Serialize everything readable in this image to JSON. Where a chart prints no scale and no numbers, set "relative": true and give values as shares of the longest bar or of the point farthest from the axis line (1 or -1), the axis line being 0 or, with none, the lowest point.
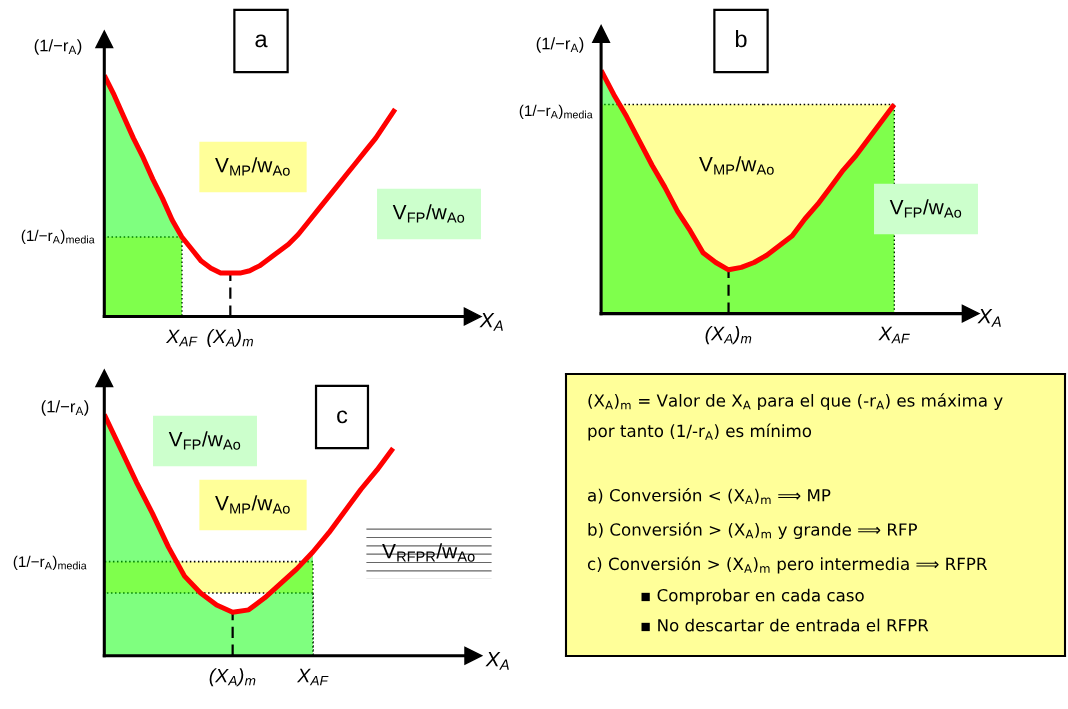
{
  "chart_data": [
    {
      "type": "line",
      "title": "a",
      "xlabel": "X$_{A}$",
      "ylabel": "(1/−r$_{A}$)",
      "relative": true,
      "categories": [
        null,
        null,
        null,
        null,
        null,
        null,
        null,
        null,
        "X$_{AF}$",
        null,
        null,
        null,
        null,
        "(X$_{A}$)$_{m}$",
        null,
        null,
        null,
        null,
        null,
        null,
        null,
        null,
        null,
        null,
        null,
        null,
        null,
        null,
        null,
        null,
        null,
        null,
        null,
        null,
        null,
        null,
        null,
        null,
        null
      ],
      "series": [
        {
          "type": "area",
          "color": "#ffff99",
          "line_style": "dotted",
          "values": [
            0.33,
            0.33,
            0.33,
            0.33,
            0.33,
            0.33,
            0.33,
            0.33,
            0.33,
            null,
            null,
            null,
            null,
            null,
            null,
            null,
            null,
            null,
            null,
            null,
            null,
            null,
            null,
            null,
            null,
            null,
            null,
            null,
            null,
            null,
            null,
            null,
            null,
            null,
            null,
            null,
            null,
            null,
            null
          ]
        },
        {
          "type": "area",
          "color": "#00ff00",
          "values": [
            1.0,
            0.92,
            0.83,
            0.74,
            0.66,
            0.57,
            0.49,
            0.4,
            0.33,
            null,
            null,
            null,
            null,
            null,
            null,
            null,
            null,
            null,
            null,
            null,
            null,
            null,
            null,
            null,
            null,
            null,
            null,
            null,
            null,
            null,
            null,
            null,
            null,
            null,
            null,
            null,
            null,
            null,
            null
          ]
        },
        {
          "type": "line",
          "color": "#ff0000",
          "values": [
            1.0,
            0.92,
            0.83,
            0.74,
            0.66,
            0.57,
            0.49,
            0.4,
            0.33,
            0.28,
            0.23,
            0.2,
            0.18,
            0.18,
            0.18,
            0.19,
            0.21,
            0.24,
            0.27,
            0.3,
            0.34,
            0.39,
            0.44,
            0.49,
            0.54,
            0.59,
            0.64,
            0.69,
            0.74,
            0.8,
            0.86,
            null,
            null,
            null,
            null,
            null,
            null,
            null,
            null
          ]
        }
      ],
      "ref_lines": [
        {
          "axis": "x",
          "value": "(X$_{A}$)$_{m}$",
          "line_style": "dashed",
          "color": "#000000"
        }
      ],
      "annotations": [
        "(1/−r$_{A}$)$_{media}$",
        "V$_{MP}$/w$_{Ao}$",
        "V$_{FP}$/w$_{Ao}$"
      ]
    },
    {
      "type": "line",
      "title": "b",
      "xlabel": "X$_{A}$",
      "ylabel": "(1/−r$_{A}$)",
      "relative": true,
      "categories": [
        null,
        null,
        null,
        null,
        null,
        null,
        null,
        null,
        null,
        null,
        "(X$_{A}$)$_{m}$",
        null,
        null,
        null,
        null,
        null,
        null,
        null,
        null,
        null,
        null,
        null,
        null,
        "X$_{AF}$",
        null,
        null,
        null,
        null,
        null,
        null
      ],
      "series": [
        {
          "type": "area",
          "color": "#ffff99",
          "line_style": "dotted",
          "values": [
            0.86,
            0.86,
            0.86,
            0.86,
            0.86,
            0.86,
            0.86,
            0.86,
            0.86,
            0.86,
            0.86,
            0.86,
            0.86,
            0.86,
            0.86,
            0.86,
            0.86,
            0.86,
            0.86,
            0.86,
            0.86,
            0.86,
            0.86,
            0.86,
            null,
            null,
            null,
            null,
            null,
            null
          ]
        },
        {
          "type": "area",
          "color": "#00ff00",
          "values": [
            1.0,
            0.9,
            0.81,
            0.71,
            0.61,
            0.52,
            0.42,
            0.34,
            0.25,
            0.21,
            0.18,
            0.19,
            0.21,
            0.24,
            0.28,
            0.32,
            0.39,
            0.45,
            0.52,
            0.59,
            0.65,
            0.72,
            0.79,
            0.86,
            null,
            null,
            null,
            null,
            null,
            null
          ]
        },
        {
          "type": "line",
          "color": "#ff0000",
          "values": [
            1.0,
            0.9,
            0.81,
            0.71,
            0.61,
            0.52,
            0.42,
            0.34,
            0.25,
            0.21,
            0.18,
            0.19,
            0.21,
            0.24,
            0.28,
            0.32,
            0.39,
            0.45,
            0.52,
            0.59,
            0.65,
            0.72,
            0.79,
            0.86,
            null,
            null,
            null,
            null,
            null,
            null
          ]
        }
      ],
      "ref_lines": [
        {
          "axis": "x",
          "value": "(X$_{A}$)$_{m}$",
          "line_style": "dashed",
          "color": "#000000"
        }
      ],
      "annotations": [
        "(1/−r$_{A}$)$_{media}$",
        "V$_{MP}$/w$_{Ao}$",
        "V$_{FP}$/w$_{Ao}$"
      ]
    },
    {
      "type": "line",
      "title": "c",
      "xlabel": "X$_{A}$",
      "ylabel": "(1/−r$_{A}$)",
      "relative": true,
      "categories": [
        null,
        null,
        null,
        null,
        null,
        null,
        null,
        null,
        "(X$_{A}$)$_{m}$",
        null,
        null,
        null,
        null,
        "X$_{AF}$",
        null,
        null,
        null,
        null,
        null,
        null,
        null,
        null,
        null,
        null
      ],
      "series": [
        {
          "type": "area",
          "color": "#ffff99",
          "line_style": "dotted",
          "values": [
            0.39,
            0.39,
            0.39,
            0.39,
            0.39,
            0.39,
            0.39,
            0.39,
            0.39,
            0.39,
            0.39,
            0.39,
            0.39,
            0.39,
            null,
            null,
            null,
            null,
            null,
            null,
            null,
            null,
            null,
            null
          ]
        },
        {
          "type": "area",
          "color": "#ffffff",
          "line_style": "dotted",
          "values": [
            0.26,
            0.26,
            0.26,
            0.26,
            0.26,
            0.26,
            0.26,
            0.26,
            0.26,
            0.26,
            0.26,
            0.26,
            0.26,
            0.26,
            null,
            null,
            null,
            null,
            null,
            null,
            null,
            null,
            null,
            null
          ]
        },
        {
          "type": "area",
          "color": "#00ff00",
          "values": [
            1.0,
            0.86,
            0.72,
            0.59,
            0.45,
            0.33,
            0.26,
            0.21,
            0.18,
            0.19,
            0.24,
            0.3,
            0.36,
            0.43,
            null,
            null,
            null,
            null,
            null,
            null,
            null,
            null,
            null,
            null
          ]
        },
        {
          "type": "line",
          "color": "#ff0000",
          "values": [
            1.0,
            0.86,
            0.72,
            0.59,
            0.45,
            0.33,
            0.26,
            0.21,
            0.18,
            0.19,
            0.24,
            0.3,
            0.36,
            0.43,
            0.51,
            0.6,
            0.69,
            0.77,
            0.86,
            null,
            null,
            null,
            null,
            null
          ]
        }
      ],
      "ref_lines": [
        {
          "axis": "x",
          "value": "(X$_{A}$)$_{m}$",
          "line_style": "dashed",
          "color": "#000000"
        }
      ],
      "annotations": [
        "(1/−r$_{A}$)$_{media}$",
        "V$_{FP}$/w$_{Ao}$",
        "V$_{MP}$/w$_{Ao}$",
        "V$_{RFPR}$/w$_{Ao}$"
      ]
    },
    {
      "type": "other",
      "color": "#ffff99",
      "annotations": [
        "(X$_{A}$)$_{m}$ = Valor de X$_{A}$ para el que (-r$_{A}$) es máxima y",
        "por tanto (1/-r$_{A}$) es mínimo",
        "a) Conversión < (X$_{A}$)$_{m}$ ⟹ MP",
        "b) Conversión > (X$_{A}$)$_{m}$ y grande ⟹ RFP",
        "c) Conversión > (X$_{A}$)$_{m}$ pero intermedia ⟹ RFPR",
        "▪ Comprobar en cada caso",
        "▪ No descartar de entrada el RFPR"
      ]
    }
  ]
}
